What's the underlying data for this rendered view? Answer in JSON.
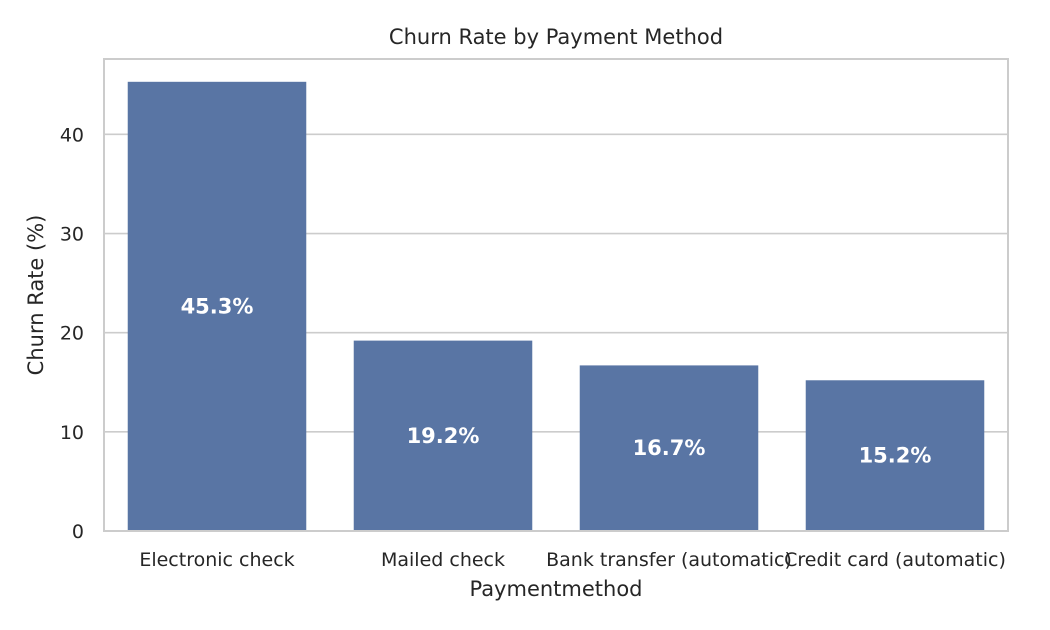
{
  "chart_data": {
    "type": "bar",
    "title": "Churn Rate by Payment Method",
    "xlabel": "Paymentmethod",
    "ylabel": "Churn Rate (%)",
    "categories": [
      "Electronic check",
      "Mailed check",
      "Bank transfer (automatic)",
      "Credit card (automatic)"
    ],
    "values": [
      45.3,
      19.2,
      16.7,
      15.2
    ],
    "data_labels": [
      "45.3%",
      "19.2%",
      "16.7%",
      "15.2%"
    ],
    "yticks": [
      0,
      10,
      20,
      30,
      40
    ],
    "ylim": [
      0,
      47.6
    ],
    "grid": true,
    "bar_color": "#5975a4",
    "grid_color": "#cccccc"
  }
}
